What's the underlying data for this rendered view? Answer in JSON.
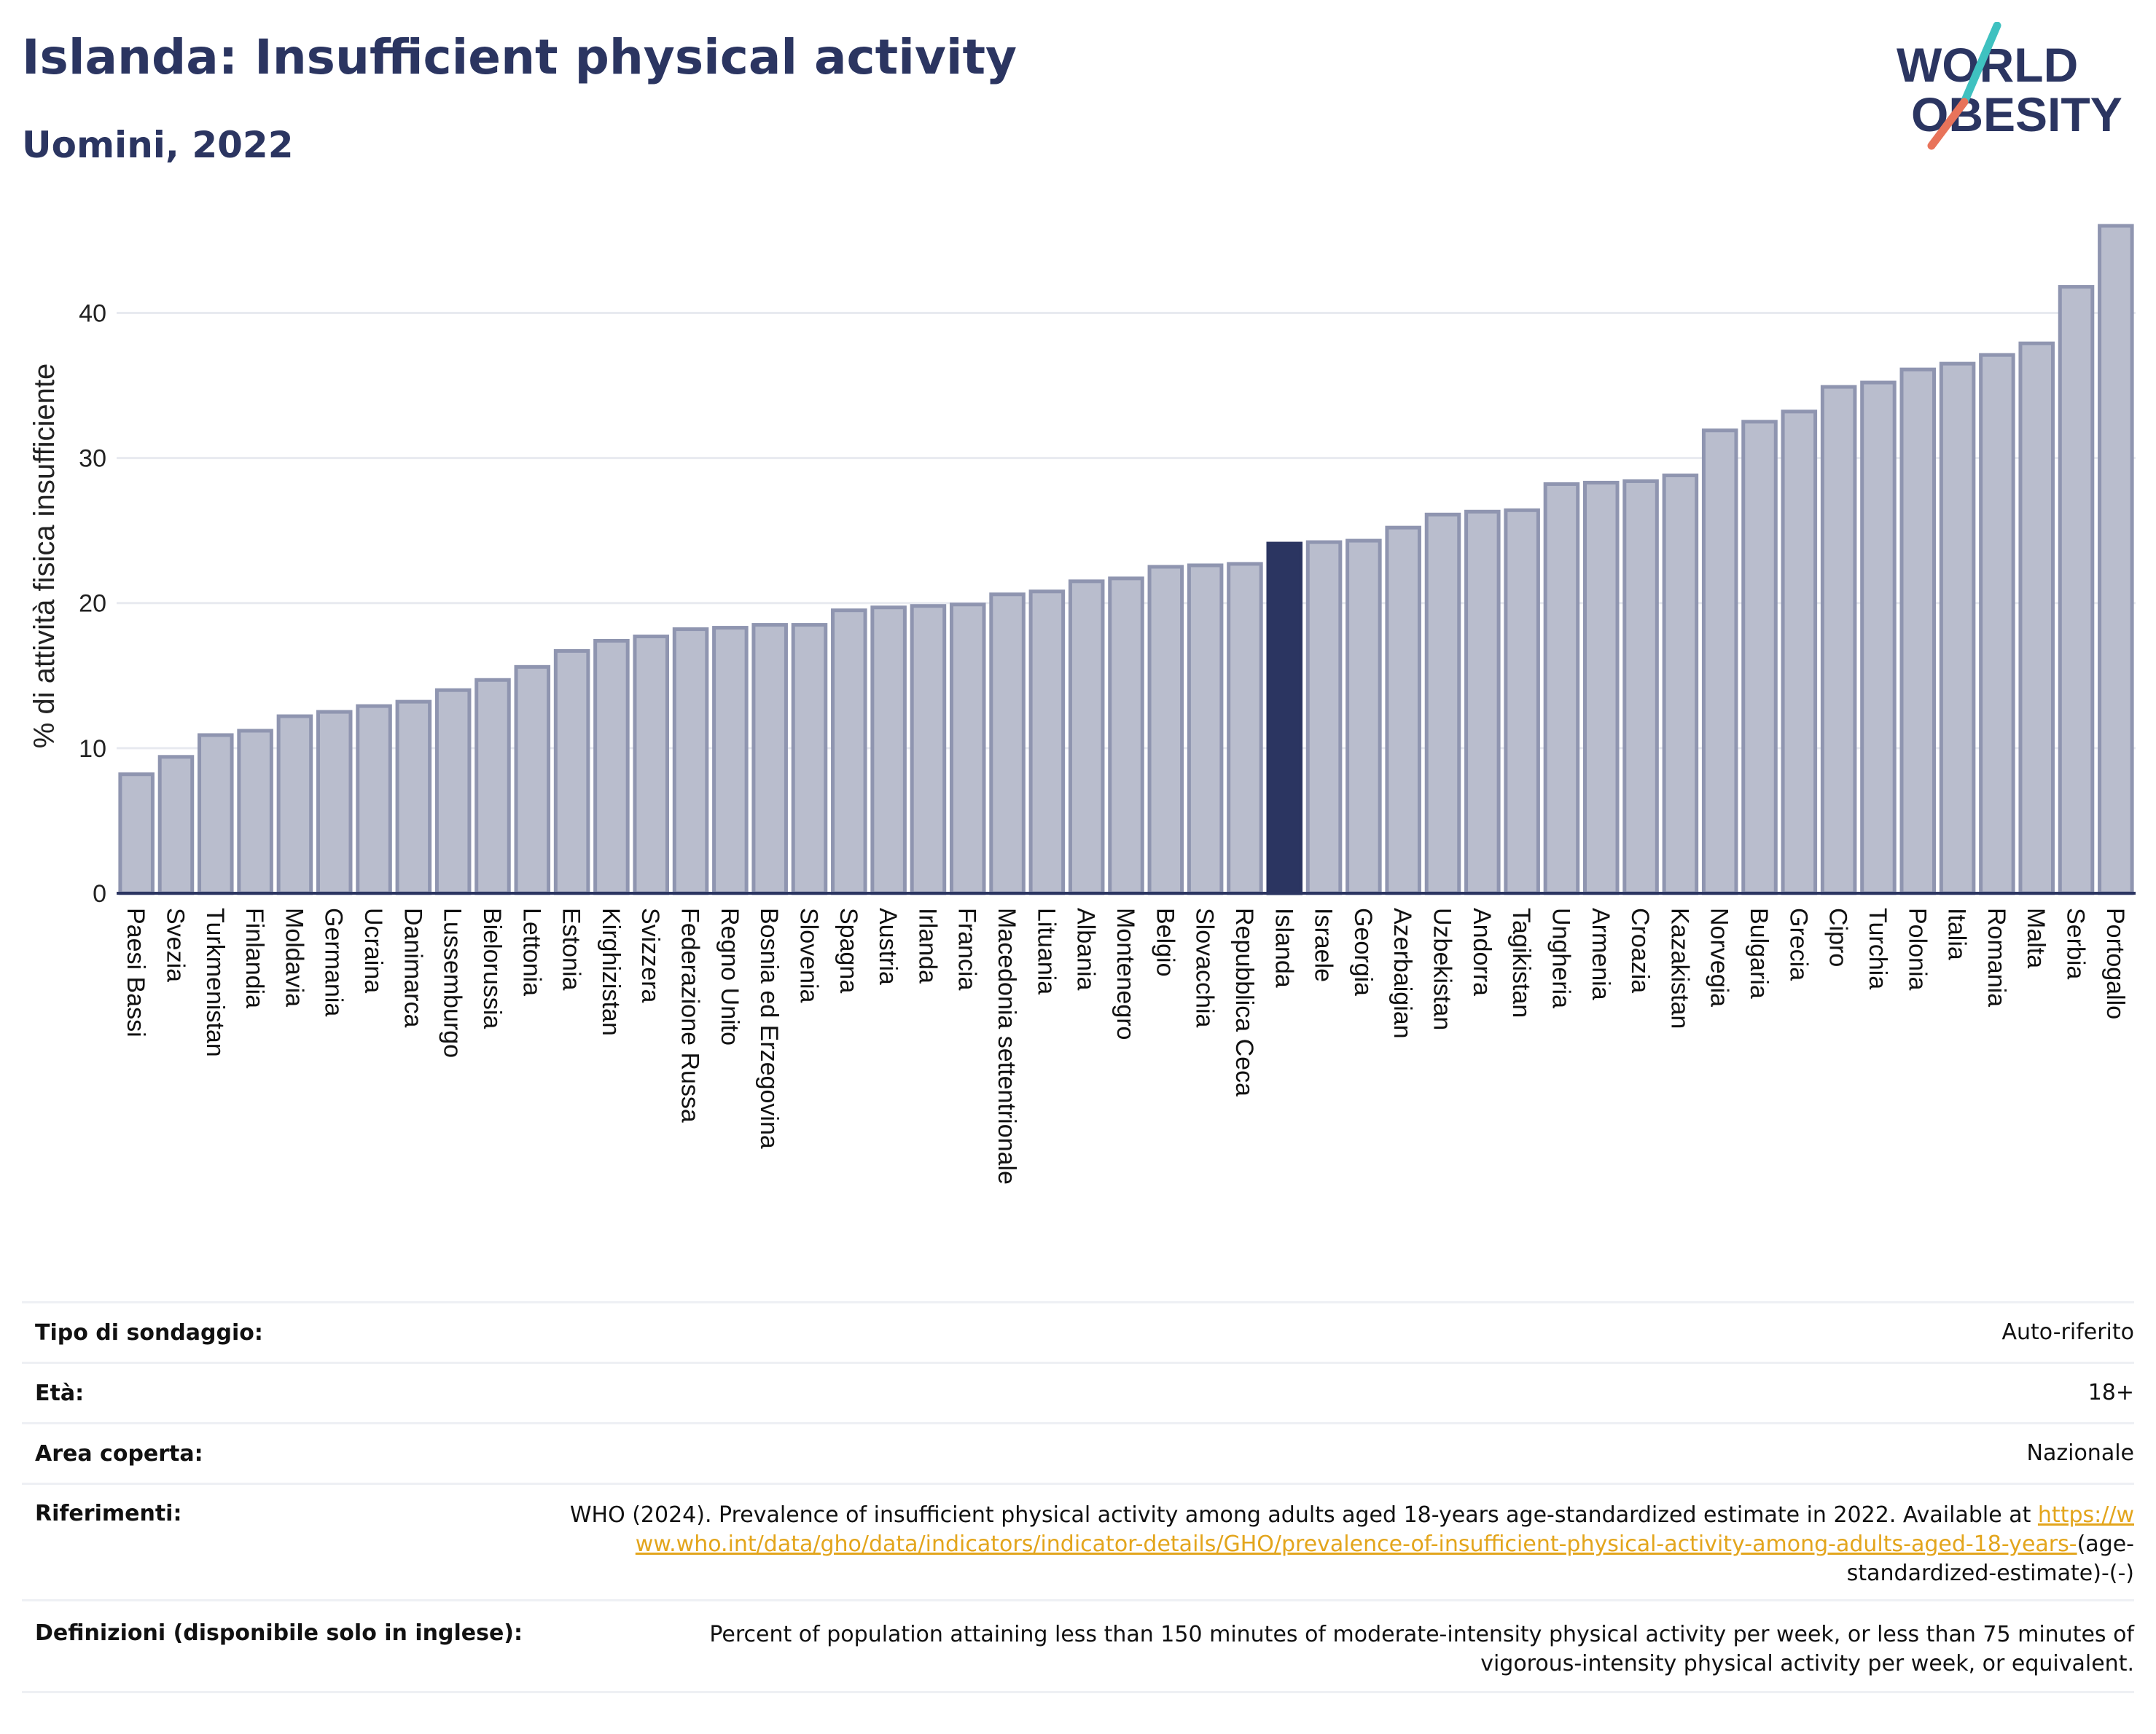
{
  "header": {
    "title": "Islanda: Insufficient physical activity",
    "subtitle": "Uomini, 2022"
  },
  "logo": {
    "line1": "WORLD",
    "line2": "OBESITY",
    "colors": {
      "text": "#2b3561",
      "slash_top": "#3fc1c0",
      "slash_bottom": "#e8735a"
    }
  },
  "chart_data": {
    "type": "bar",
    "ylabel": "% di attività fisica insufficiente",
    "xlabel": "",
    "ylim": [
      0,
      46.5
    ],
    "yticks": [
      0,
      10,
      20,
      30,
      40
    ],
    "grid": true,
    "highlight": "Islanda",
    "colors": {
      "bar": "#b9bdcd",
      "bar_edge": "#8f95b0",
      "highlight": "#2b3561"
    },
    "categories": [
      "Paesi Bassi",
      "Svezia",
      "Turkmenistan",
      "Finlandia",
      "Moldavia",
      "Germania",
      "Ucraina",
      "Danimarca",
      "Lussemburgo",
      "Bielorussia",
      "Lettonia",
      "Estonia",
      "Kirghizistan",
      "Svizzera",
      "Federazione Russa",
      "Regno Unito",
      "Bosnia ed Erzegovina",
      "Slovenia",
      "Spagna",
      "Austria",
      "Irlanda",
      "Francia",
      "Macedonia settentrionale",
      "Lituania",
      "Albania",
      "Montenegro",
      "Belgio",
      "Slovacchia",
      "Repubblica Ceca",
      "Islanda",
      "Israele",
      "Georgia",
      "Azerbaigian",
      "Uzbekistan",
      "Andorra",
      "Tagikistan",
      "Ungheria",
      "Armenia",
      "Croazia",
      "Kazakistan",
      "Norvegia",
      "Bulgaria",
      "Grecia",
      "Cipro",
      "Turchia",
      "Polonia",
      "Italia",
      "Romania",
      "Malta",
      "Serbia",
      "Portogallo"
    ],
    "values": [
      8.2,
      9.4,
      10.9,
      11.2,
      12.2,
      12.5,
      12.9,
      13.2,
      14.0,
      14.7,
      15.6,
      16.7,
      17.4,
      17.7,
      18.2,
      18.3,
      18.5,
      18.5,
      19.5,
      19.7,
      19.8,
      19.9,
      20.6,
      20.8,
      21.5,
      21.7,
      22.5,
      22.6,
      22.7,
      24.1,
      24.2,
      24.3,
      25.2,
      26.1,
      26.3,
      26.4,
      28.2,
      28.3,
      28.4,
      28.8,
      31.9,
      32.5,
      33.2,
      34.9,
      35.2,
      36.1,
      36.5,
      37.1,
      37.9,
      41.8,
      46.0
    ]
  },
  "meta": [
    {
      "label": "Tipo di sondaggio:",
      "value": "Auto-riferito"
    },
    {
      "label": "Età:",
      "value": "18+"
    },
    {
      "label": "Area coperta:",
      "value": "Nazionale"
    },
    {
      "label": "Riferimenti:",
      "value": "WHO (2024). Prevalence of insufficient physical activity among adults aged 18-years age-standardized estimate in 2022. Available at",
      "link": "https://www.who.int/data/gho/data/indicators/indicator-details/GHO/prevalence-of-insufficient-physical-activity-among-adults-aged-18-years-",
      "tail": "(age-standardized-estimate)-(-)"
    },
    {
      "label": "Definizioni (disponibile solo in inglese):",
      "value": "Percent of population attaining less than 150 minutes of moderate-intensity physical activity per week, or less than 75 minutes of vigorous-intensity physical activity per week, or equivalent."
    }
  ]
}
